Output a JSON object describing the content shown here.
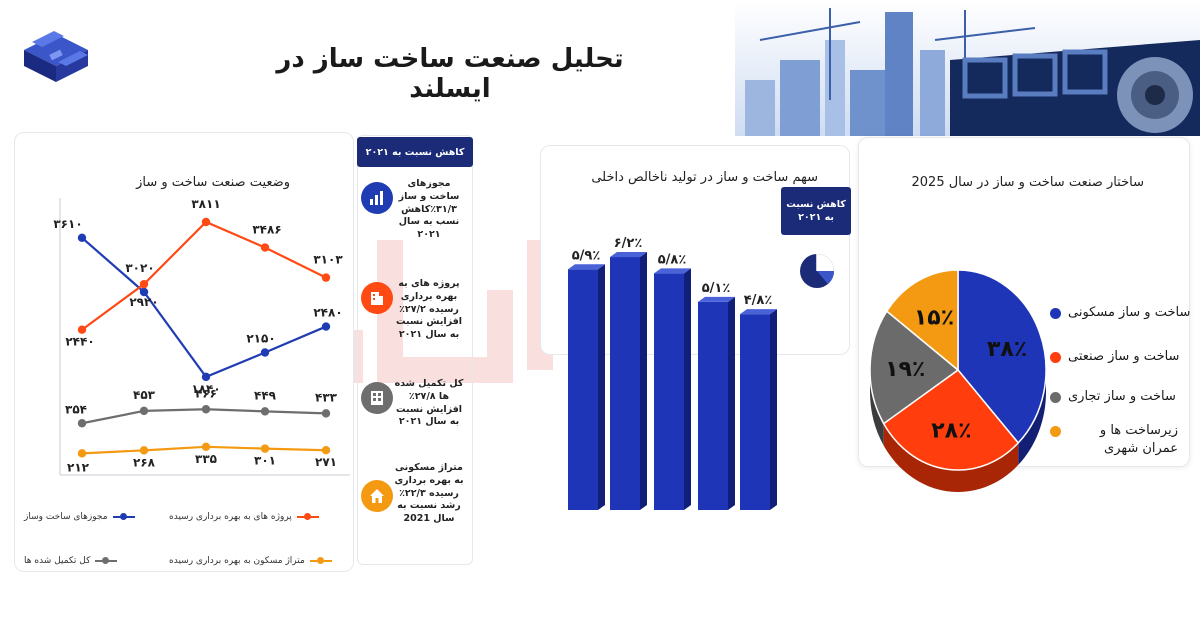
{
  "page": {
    "title": "تحلیل صنعت ساخت ساز در ایسلند"
  },
  "colors": {
    "navy": "#1c2b78",
    "blue": "#1f3cb3",
    "orange": "#ff4a14",
    "gray": "#6e6e6e",
    "amber": "#f39a12",
    "bar": "#1f35b8"
  },
  "line_section": {
    "title": "وضعیت صنعت ساخت و  ساز"
  },
  "info": {
    "header": "کاهش نسبت به ۲۰۲۱",
    "items": [
      {
        "icon": "bar-chart-icon",
        "text": "مجوزهای ساخت و ساز ۳۱/۳٪کاهش نسب به سال ۲۰۲۱"
      },
      {
        "icon": "building-icon",
        "text": "پروژه های به بهره برداری رسیده ۲۷/۲٪ افزایش نسبت به سال ۲۰۲۱"
      },
      {
        "icon": "grid-building-icon",
        "text": "کل تکمیل شده ها ۲۷/۸٪ افزایش نسبت به سال ۲۰۲۱"
      },
      {
        "icon": "house-icon",
        "text": "متراژ مسکونی به بهره برداری رسیده ۲۲/۳٪ رشد نسبت به سال 2021"
      }
    ]
  },
  "bar_section": {
    "title": "سهم ساخت و ساز در تولید ناخالص داخلی",
    "badge_line1": "کاهش نسبت",
    "badge_line2": "به ۲۰۲۱"
  },
  "pie_section": {
    "title": "ساختار صنعت ساخت و ساز در سال 2025"
  },
  "chart_data": [
    {
      "type": "line",
      "series": [
        {
          "name": "مجوزهای ساخت وساز",
          "color": "#1f3cb3",
          "values": [
            3610,
            2920,
            1840,
            2150,
            2480
          ],
          "labels": [
            "۳۶۱۰",
            "۲۹۲۰",
            "۱۸۴۰",
            "۲۱۵۰",
            "۲۴۸۰"
          ]
        },
        {
          "name": "پروژه های به بهره برداری رسیده",
          "color": "#ff4a14",
          "values": [
            2440,
            3020,
            3811,
            3486,
            3103
          ],
          "labels": [
            "۲۴۴۰",
            "۳۰۲۰",
            "۳۸۱۱",
            "۳۴۸۶",
            "۳۱۰۳"
          ]
        },
        {
          "name": "کل تکمیل شده ها",
          "color": "#6e6e6e",
          "values": [
            354,
            453,
            466,
            449,
            433
          ],
          "labels": [
            "۳۵۴",
            "۴۵۳",
            "۴۶۶",
            "۴۴۹",
            "۴۳۳"
          ]
        },
        {
          "name": "متراژ مسکون به بهره برداری رسیده",
          "color": "#f39a12",
          "values": [
            212,
            268,
            335,
            301,
            271
          ],
          "labels": [
            "۲۱۲",
            "۲۶۸",
            "۳۳۵",
            "۳۰۱",
            "۲۷۱"
          ]
        }
      ]
    },
    {
      "type": "bar",
      "values": [
        5.9,
        6.2,
        5.8,
        5.1,
        4.8
      ],
      "labels": [
        "۵/۹٪",
        "۶/۲٪",
        "۵/۸٪",
        "۵/۱٪",
        "۴/۸٪"
      ],
      "ylim": [
        0,
        7
      ]
    },
    {
      "type": "pie",
      "slices": [
        {
          "name": "ساخت و ساز مسکونی",
          "value": 38,
          "label": "۳۸٪",
          "color": "#1f35b8",
          "dark": "#131f73"
        },
        {
          "name": "ساخت و ساز صنعتی",
          "value": 28,
          "label": "۲۸٪",
          "color": "#ff3d0d",
          "dark": "#a82605"
        },
        {
          "name": "ساخت و ساز تجاری",
          "value": 19,
          "label": "۱۹٪",
          "color": "#6b6b6b",
          "dark": "#3d3d3d"
        },
        {
          "name": "زیرساخت ها و عمران شهری",
          "value": 15,
          "label": "۱۵٪",
          "color": "#f39a12",
          "dark": "#a8690a"
        }
      ]
    }
  ]
}
